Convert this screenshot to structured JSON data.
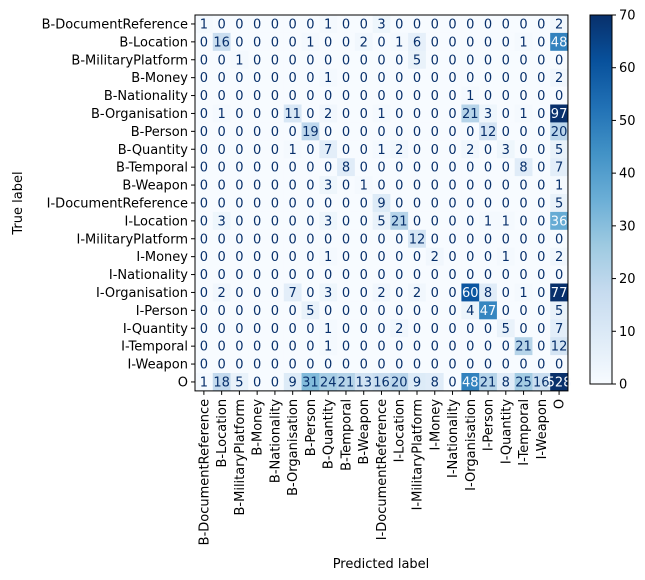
{
  "chart_data": {
    "type": "heatmap",
    "title": "",
    "xlabel": "Predicted label",
    "ylabel": "True label",
    "labels": [
      "B-DocumentReference",
      "B-Location",
      "B-MilitaryPlatform",
      "B-Money",
      "B-Nationality",
      "B-Organisation",
      "B-Person",
      "B-Quantity",
      "B-Temporal",
      "B-Weapon",
      "I-DocumentReference",
      "I-Location",
      "I-MilitaryPlatform",
      "I-Money",
      "I-Nationality",
      "I-Organisation",
      "I-Person",
      "I-Quantity",
      "I-Temporal",
      "I-Weapon",
      "O"
    ],
    "matrix": [
      [
        1,
        0,
        0,
        0,
        0,
        0,
        0,
        1,
        0,
        0,
        3,
        0,
        0,
        0,
        0,
        0,
        0,
        0,
        0,
        0,
        2
      ],
      [
        0,
        16,
        0,
        0,
        0,
        0,
        1,
        0,
        0,
        2,
        0,
        1,
        6,
        0,
        0,
        0,
        0,
        0,
        1,
        0,
        48
      ],
      [
        0,
        0,
        1,
        0,
        0,
        0,
        0,
        0,
        0,
        0,
        0,
        0,
        5,
        0,
        0,
        0,
        0,
        0,
        0,
        0,
        0
      ],
      [
        0,
        0,
        0,
        0,
        0,
        0,
        0,
        1,
        0,
        0,
        0,
        0,
        0,
        0,
        0,
        0,
        0,
        0,
        0,
        0,
        2
      ],
      [
        0,
        0,
        0,
        0,
        0,
        0,
        0,
        0,
        0,
        0,
        0,
        0,
        0,
        0,
        0,
        1,
        0,
        0,
        0,
        0,
        0
      ],
      [
        0,
        1,
        0,
        0,
        0,
        11,
        0,
        2,
        0,
        0,
        1,
        0,
        0,
        0,
        0,
        21,
        3,
        0,
        1,
        0,
        97
      ],
      [
        0,
        0,
        0,
        0,
        0,
        0,
        19,
        0,
        0,
        0,
        0,
        0,
        0,
        0,
        0,
        0,
        12,
        0,
        0,
        0,
        20
      ],
      [
        0,
        0,
        0,
        0,
        0,
        1,
        0,
        7,
        0,
        0,
        1,
        2,
        0,
        0,
        0,
        2,
        0,
        3,
        0,
        0,
        5
      ],
      [
        0,
        0,
        0,
        0,
        0,
        0,
        0,
        0,
        8,
        0,
        0,
        0,
        0,
        0,
        0,
        0,
        0,
        0,
        8,
        0,
        7
      ],
      [
        0,
        0,
        0,
        0,
        0,
        0,
        0,
        3,
        0,
        1,
        0,
        0,
        0,
        0,
        0,
        0,
        0,
        0,
        0,
        0,
        1
      ],
      [
        0,
        0,
        0,
        0,
        0,
        0,
        0,
        0,
        0,
        0,
        9,
        0,
        0,
        0,
        0,
        0,
        0,
        0,
        0,
        0,
        5
      ],
      [
        0,
        3,
        0,
        0,
        0,
        0,
        0,
        3,
        0,
        0,
        5,
        21,
        0,
        0,
        0,
        0,
        1,
        1,
        0,
        0,
        36
      ],
      [
        0,
        0,
        0,
        0,
        0,
        0,
        0,
        0,
        0,
        0,
        0,
        0,
        12,
        0,
        0,
        0,
        0,
        0,
        0,
        0,
        0
      ],
      [
        0,
        0,
        0,
        0,
        0,
        0,
        0,
        1,
        0,
        0,
        0,
        0,
        0,
        2,
        0,
        0,
        0,
        1,
        0,
        0,
        2
      ],
      [
        0,
        0,
        0,
        0,
        0,
        0,
        0,
        0,
        0,
        0,
        0,
        0,
        0,
        0,
        0,
        0,
        0,
        0,
        0,
        0,
        0
      ],
      [
        0,
        2,
        0,
        0,
        0,
        7,
        0,
        3,
        0,
        0,
        2,
        0,
        2,
        0,
        0,
        60,
        8,
        0,
        1,
        0,
        77
      ],
      [
        0,
        0,
        0,
        0,
        0,
        0,
        5,
        0,
        0,
        0,
        0,
        0,
        0,
        0,
        0,
        4,
        47,
        0,
        0,
        0,
        5
      ],
      [
        0,
        0,
        0,
        0,
        0,
        0,
        0,
        1,
        0,
        0,
        0,
        2,
        0,
        0,
        0,
        0,
        0,
        5,
        0,
        0,
        7
      ],
      [
        0,
        0,
        0,
        0,
        0,
        0,
        0,
        1,
        0,
        0,
        0,
        0,
        0,
        0,
        0,
        0,
        0,
        0,
        21,
        0,
        12
      ],
      [
        0,
        0,
        0,
        0,
        0,
        0,
        0,
        0,
        0,
        0,
        0,
        0,
        0,
        0,
        0,
        0,
        0,
        0,
        0,
        0,
        0
      ],
      [
        1,
        18,
        5,
        0,
        0,
        9,
        31,
        24,
        21,
        13,
        16,
        20,
        9,
        8,
        0,
        48,
        21,
        8,
        25,
        16,
        528
      ]
    ],
    "colorbar": {
      "vmin": 0,
      "vmax": 70,
      "ticks": [
        0,
        10,
        20,
        30,
        40,
        50,
        60,
        70
      ]
    },
    "colormap": "Blues",
    "colors": {
      "low": "#f7fbff",
      "high": "#08306b",
      "text_dark": "#08306b",
      "text_light": "#f7fbff"
    }
  }
}
